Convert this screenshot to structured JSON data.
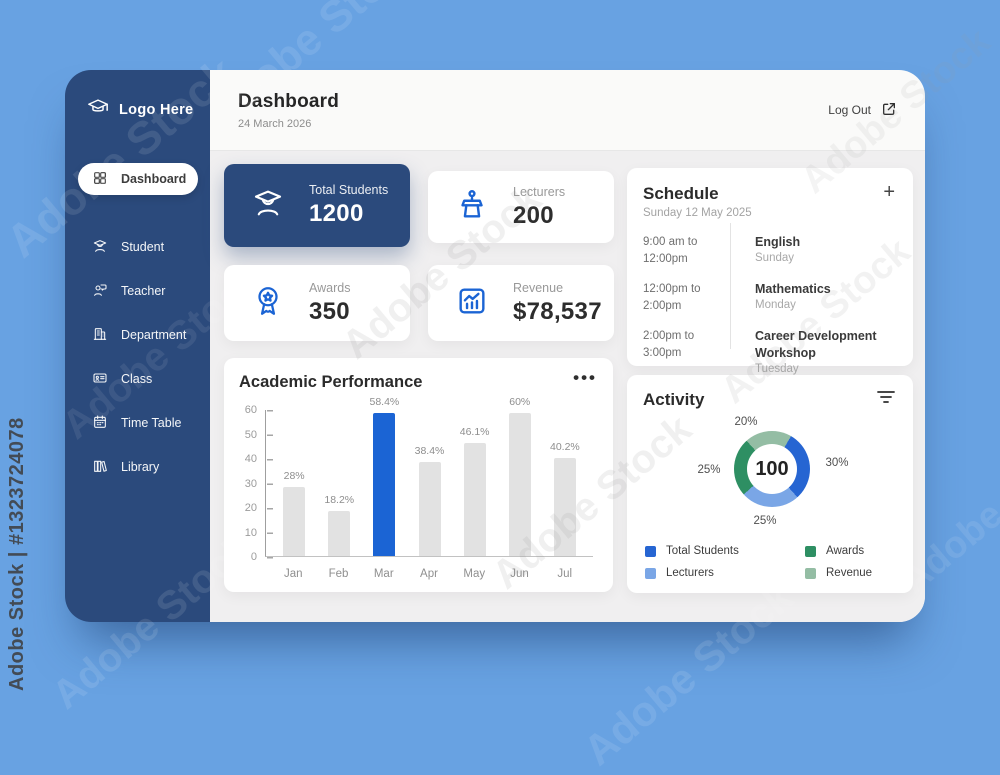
{
  "watermark": {
    "diagonal_text": "Adobe Stock",
    "side_text": "Adobe Stock | #1323724078"
  },
  "colors": {
    "page_background": "#68a2e2",
    "sidebar_navy": "#2b4a7c",
    "accent_blue": "#1b64d4",
    "content_background": "#f0eff0"
  },
  "sidebar": {
    "logo": {
      "label": "Logo Here",
      "icon": "graduation-cap-icon"
    },
    "items": [
      {
        "label": "Dashboard",
        "icon": "grid-icon",
        "active": true
      },
      {
        "label": "Student",
        "icon": "student-icon",
        "active": false
      },
      {
        "label": "Teacher",
        "icon": "teacher-icon",
        "active": false
      },
      {
        "label": "Department",
        "icon": "building-icon",
        "active": false
      },
      {
        "label": "Class",
        "icon": "id-card-icon",
        "active": false
      },
      {
        "label": "Time Table",
        "icon": "calendar-icon",
        "active": false
      },
      {
        "label": "Library",
        "icon": "books-icon",
        "active": false
      }
    ]
  },
  "header": {
    "title": "Dashboard",
    "date": "24 March 2026",
    "logout_label": "Log Out"
  },
  "stats": [
    {
      "label": "Total Students",
      "value": "1200",
      "icon": "student-icon",
      "variant": "dark"
    },
    {
      "label": "Lecturers",
      "value": "200",
      "icon": "lecturer-icon",
      "variant": "light"
    },
    {
      "label": "Awards",
      "value": "350",
      "icon": "award-icon",
      "variant": "light"
    },
    {
      "label": "Revenue",
      "value": "$78,537",
      "icon": "revenue-icon",
      "variant": "light"
    }
  ],
  "chart_data": [
    {
      "type": "bar",
      "title": "Academic Performance",
      "categories": [
        "Jan",
        "Feb",
        "Mar",
        "Apr",
        "May",
        "Jun",
        "Jul"
      ],
      "values": [
        28,
        18.2,
        58.4,
        38.4,
        46.1,
        60,
        40.2
      ],
      "labels": [
        "28%",
        "18.2%",
        "58.4%",
        "38.4%",
        "46.1%",
        "60%",
        "40.2%"
      ],
      "highlight_index": 2,
      "bar_color": "#e2e2e2",
      "highlight_color": "#1b64d4",
      "xlabel": "",
      "ylabel": "",
      "ylim": [
        0,
        60
      ],
      "yticks": [
        0,
        10,
        20,
        30,
        40,
        50,
        60
      ],
      "grid": false,
      "legend_position": "none"
    },
    {
      "type": "pie",
      "title": "Activity",
      "center_value": "100",
      "start_angle_deg": 30,
      "segments": [
        {
          "name": "Total Students",
          "pct": 30,
          "label": "30%",
          "color": "#2665d2"
        },
        {
          "name": "Lecturers",
          "pct": 25,
          "label": "25%",
          "color": "#7aa6e6"
        },
        {
          "name": "Awards",
          "pct": 25,
          "label": "25%",
          "color": "#2e8f63"
        },
        {
          "name": "Revenue",
          "pct": 20,
          "label": "20%",
          "color": "#94bda4"
        }
      ],
      "legend_position": "bottom"
    }
  ],
  "schedule": {
    "title": "Schedule",
    "date": "Sunday 12 May 2025",
    "items": [
      {
        "time": "9:00 am to 12:00pm",
        "subject": "English",
        "day": "Sunday"
      },
      {
        "time": "12:00pm to 2:00pm",
        "subject": "Mathematics",
        "day": "Monday"
      },
      {
        "time": "2:00pm to 3:00pm",
        "subject": "Career Development Workshop",
        "day": "Tuesday"
      }
    ]
  },
  "activity": {
    "legend": [
      {
        "label": "Total Students",
        "color": "#2665d2"
      },
      {
        "label": "Awards",
        "color": "#2e8f63"
      },
      {
        "label": "Lecturers",
        "color": "#7aa6e6"
      },
      {
        "label": "Revenue",
        "color": "#94bda4"
      }
    ]
  }
}
